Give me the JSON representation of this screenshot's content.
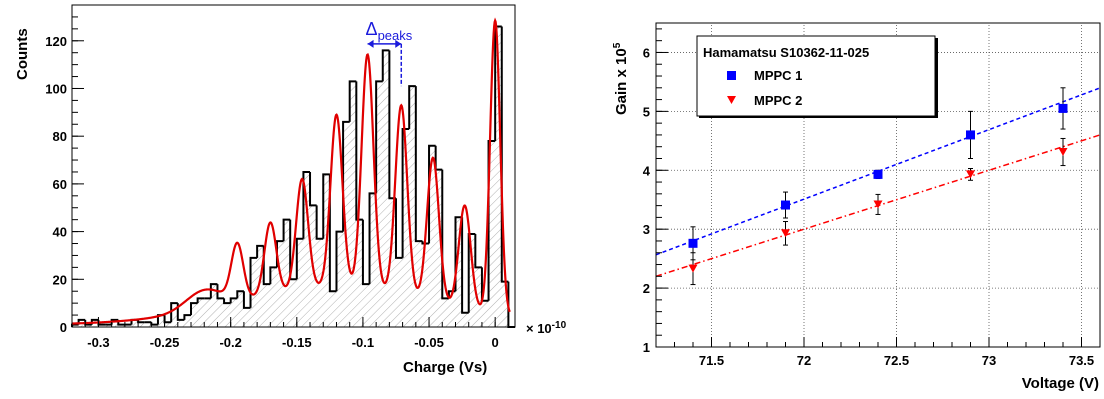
{
  "colors": {
    "hist": "#000000",
    "fit": "#e00000",
    "hatch": "#b0b0b0",
    "annot": "#1a1adc",
    "mppc1": "#0000ff",
    "mppc2": "#ff0000",
    "grid": "#555555"
  },
  "chart_data": [
    {
      "type": "histogram",
      "xlabel": "Charge (Vs)",
      "ylabel": "Counts",
      "multiplier": "× 10",
      "multiplier_exp": "-10",
      "annotation": {
        "symbol": "Δ",
        "subscript": "peaks",
        "x_from": -0.0965,
        "x_to": -0.071,
        "y": 117
      },
      "xlim": [
        -0.32,
        0.015
      ],
      "ylim": [
        0,
        135
      ],
      "x_ticks": [
        -0.3,
        -0.25,
        -0.2,
        -0.15,
        -0.1,
        -0.05,
        0
      ],
      "x_tick_labels": [
        "-0.3",
        "-0.25",
        "-0.2",
        "-0.15",
        "-0.1",
        "-0.05",
        "0"
      ],
      "y_ticks": [
        0,
        20,
        40,
        60,
        80,
        100,
        120
      ],
      "y_tick_labels": [
        "0",
        "20",
        "40",
        "60",
        "80",
        "100",
        "120"
      ],
      "bin_width": 0.005,
      "bins_start": -0.32,
      "counts": [
        1,
        3,
        1,
        3,
        1,
        1,
        3,
        1,
        1,
        3,
        2,
        2,
        1,
        5,
        2,
        10,
        3,
        5,
        10,
        12,
        12,
        18,
        12,
        10,
        12,
        15,
        8,
        29,
        34,
        18,
        25,
        36,
        45,
        20,
        37,
        65,
        51,
        37,
        64,
        15,
        40,
        86,
        103,
        45,
        18,
        56,
        103,
        116,
        54,
        29,
        83,
        101,
        36,
        35,
        76,
        66,
        12,
        15,
        46,
        6,
        39,
        25,
        11,
        78,
        126,
        19,
        0
      ],
      "fit_peaks": [
        {
          "mu": -0.22,
          "amp": 8,
          "sigma": 0.014
        },
        {
          "mu": -0.195,
          "amp": 23,
          "sigma": 0.0045
        },
        {
          "mu": -0.17,
          "amp": 30,
          "sigma": 0.0045
        },
        {
          "mu": -0.146,
          "amp": 46,
          "sigma": 0.0045
        },
        {
          "mu": -0.12,
          "amp": 72,
          "sigma": 0.0045
        },
        {
          "mu": -0.0965,
          "amp": 98,
          "sigma": 0.0045
        },
        {
          "mu": -0.071,
          "amp": 79,
          "sigma": 0.0045
        },
        {
          "mu": -0.047,
          "amp": 60,
          "sigma": 0.0045
        },
        {
          "mu": -0.023,
          "amp": 43,
          "sigma": 0.0045
        },
        {
          "mu": 0.0,
          "amp": 123,
          "sigma": 0.0038
        }
      ],
      "fit_background": {
        "amp": 16,
        "mu": -0.12,
        "sigma": 0.075,
        "floor": 1
      }
    },
    {
      "type": "scatter",
      "xlabel": "Voltage (V)",
      "ylabel": "Gain x 10",
      "ylabel_exp": "5",
      "legend_title": "Hamamatsu S10362-11-025",
      "legend_position": "top-left",
      "grid": true,
      "xlim": [
        71.2,
        73.6
      ],
      "ylim": [
        1,
        6.5
      ],
      "x_ticks": [
        71.5,
        72,
        72.5,
        73,
        73.5
      ],
      "x_tick_labels": [
        "71.5",
        "72",
        "72.5",
        "73",
        "73.5"
      ],
      "y_ticks": [
        1,
        2,
        3,
        4,
        5,
        6
      ],
      "y_tick_labels": [
        "1",
        "2",
        "3",
        "4",
        "5",
        "6"
      ],
      "series": [
        {
          "name": "MPPC 1",
          "marker": "square",
          "x": [
            71.4,
            71.9,
            72.4,
            72.9,
            73.4
          ],
          "y": [
            2.76,
            3.41,
            3.93,
            4.6,
            5.05
          ],
          "err": [
            0.28,
            0.22,
            0.07,
            0.4,
            0.35
          ],
          "fit": {
            "slope": 1.18,
            "intercept": -81.45,
            "style": "dashed"
          }
        },
        {
          "name": "MPPC 2",
          "marker": "triangle-down",
          "x": [
            71.4,
            71.9,
            72.4,
            72.9,
            73.4
          ],
          "y": [
            2.33,
            2.93,
            3.42,
            3.93,
            4.31
          ],
          "err": [
            0.27,
            0.2,
            0.17,
            0.1,
            0.23
          ],
          "fit": {
            "slope": 1.0,
            "intercept": -69.0,
            "style": "dashdot"
          }
        }
      ]
    }
  ]
}
